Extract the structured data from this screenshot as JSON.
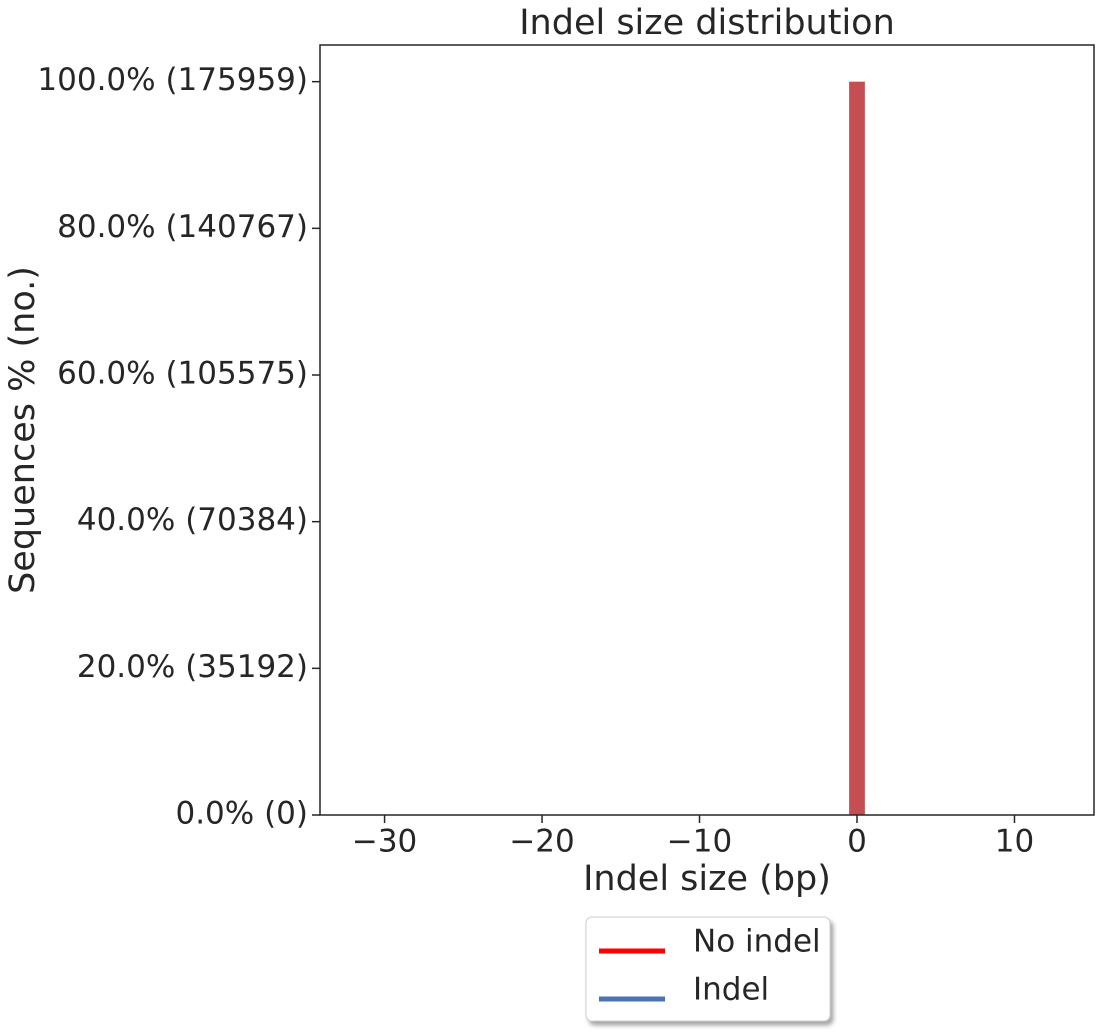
{
  "chart_data": {
    "type": "histogram",
    "title": "Indel size distribution",
    "xlabel": "Indel size (bp)",
    "ylabel": "Sequences % (no.)",
    "bins": [
      -0.5,
      0.5
    ],
    "values": [
      100
    ],
    "color": "#c44e52",
    "xlim": [
      -34.1,
      15.05
    ],
    "xticks": [
      {
        "value": -30,
        "label": "−30"
      },
      {
        "value": -20,
        "label": "−20"
      },
      {
        "value": -10,
        "label": "−10"
      },
      0,
      10
    ],
    "ylim": [
      0,
      105
    ],
    "yticks": [
      {
        "value": 0,
        "label": "0.0% (0)"
      },
      {
        "value": 20,
        "label": "20.0% (35192)"
      },
      {
        "value": 40,
        "label": "40.0% (70384)"
      },
      {
        "value": 60,
        "label": "60.0% (105575)"
      },
      {
        "value": 80,
        "label": "80.0% (140767)"
      },
      {
        "value": 100,
        "label": "100.0% (175959)"
      }
    ],
    "grid": false,
    "legend": [
      {
        "name": "No indel",
        "color": "#ff0000"
      },
      {
        "name": "Indel",
        "color": "#4c72b0"
      }
    ]
  }
}
